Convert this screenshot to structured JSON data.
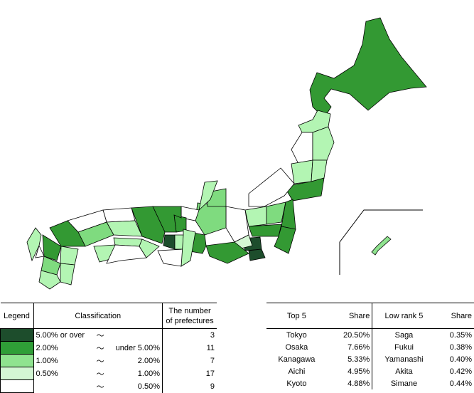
{
  "legend_table": {
    "headers": [
      "Legend",
      "Classification",
      "The number of prefectures"
    ],
    "rows": [
      {
        "color": "#1d4d2c",
        "from": "5.00% or over",
        "tilde": "〜",
        "count": 3
      },
      {
        "color": "#2f9e37",
        "from": "2.00%",
        "tilde": "〜",
        "to": "under 5.00%",
        "count": 11
      },
      {
        "color": "#8fe38f",
        "from": "1.00%",
        "tilde": "〜",
        "to": "2.00%",
        "count": 7
      },
      {
        "color": "#d4f7d4",
        "from": "0.50%",
        "tilde": "〜",
        "to": "1.00%",
        "count": 17
      },
      {
        "color": "#ffffff",
        "tilde": "〜",
        "to": "0.50%",
        "count": 9
      }
    ]
  },
  "rank_table": {
    "headers": [
      "Top 5",
      "Share",
      "Low rank 5",
      "Share"
    ],
    "rows": [
      [
        "Tokyo",
        "20.50%",
        "Saga",
        "0.35%"
      ],
      [
        "Osaka",
        "7.66%",
        "Fukui",
        "0.38%"
      ],
      [
        "Kanagawa",
        "5.33%",
        "Yamanashi",
        "0.40%"
      ],
      [
        "Aichi",
        "4.95%",
        "Akita",
        "0.42%"
      ],
      [
        "Kyoto",
        "4.88%",
        "Simane",
        "0.44%"
      ]
    ]
  }
}
